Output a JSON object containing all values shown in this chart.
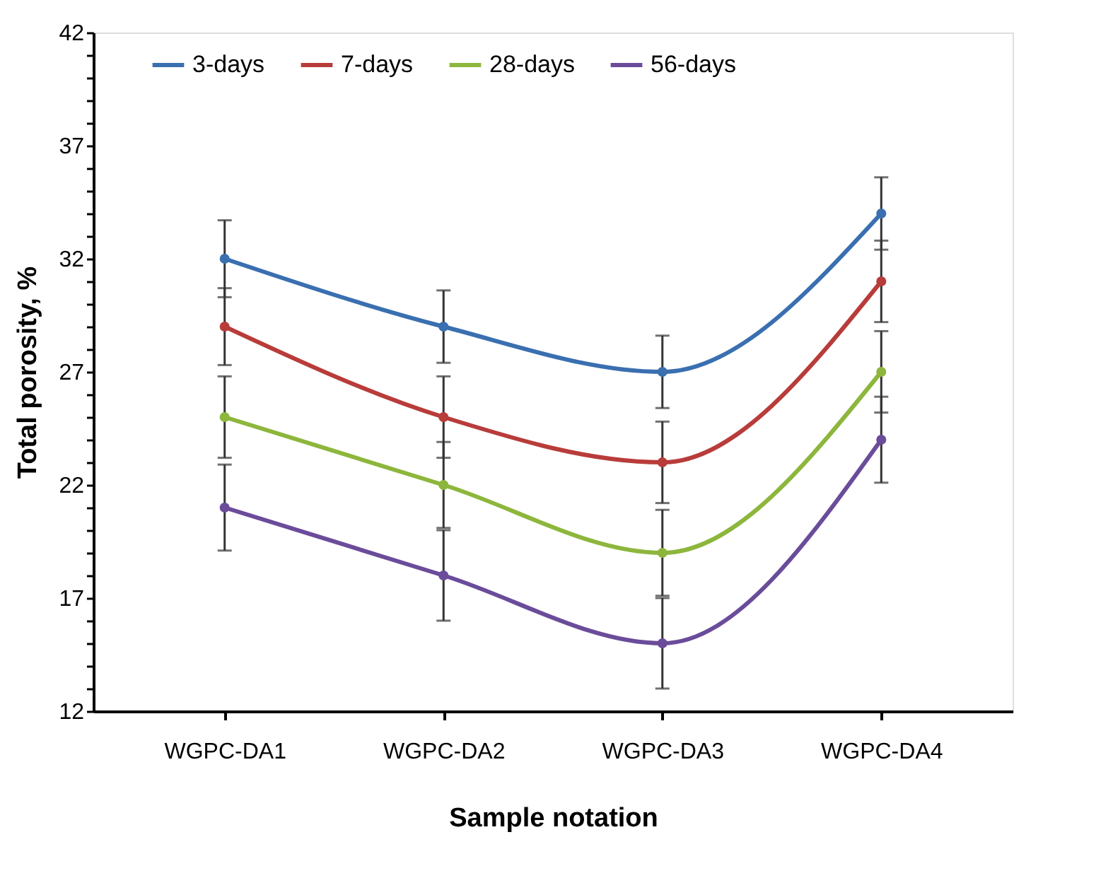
{
  "chart_data": {
    "type": "line",
    "xlabel": "Sample notation",
    "ylabel": "Total porosity, %",
    "categories": [
      "WGPC-DA1",
      "WGPC-DA2",
      "WGPC-DA3",
      "WGPC-DA4"
    ],
    "series": [
      {
        "name": "3-days",
        "color": "#3a6fb0",
        "values": [
          32,
          29,
          27,
          34
        ],
        "errors": [
          1.7,
          1.6,
          1.6,
          1.6
        ]
      },
      {
        "name": "7-days",
        "color": "#b83c3a",
        "values": [
          29,
          25,
          23,
          31
        ],
        "errors": [
          1.7,
          1.8,
          1.8,
          1.8
        ]
      },
      {
        "name": "28-days",
        "color": "#8db63c",
        "values": [
          25,
          22,
          19,
          27
        ],
        "errors": [
          1.8,
          1.9,
          1.9,
          1.8
        ]
      },
      {
        "name": "56-days",
        "color": "#6b4c9a",
        "values": [
          21,
          18,
          15,
          24
        ],
        "errors": [
          1.9,
          2.0,
          2.0,
          1.9
        ]
      }
    ],
    "ylim": [
      12,
      42
    ],
    "yticks": [
      12,
      {
        "value": 13,
        "label": null
      },
      {
        "value": 14,
        "label": null
      },
      {
        "value": 15,
        "label": null
      },
      {
        "value": 16,
        "label": null
      },
      17,
      {
        "value": 18,
        "label": null
      },
      {
        "value": 19,
        "label": null
      },
      {
        "value": 20,
        "label": null
      },
      {
        "value": 21,
        "label": null
      },
      22,
      {
        "value": 23,
        "label": null
      },
      {
        "value": 24,
        "label": null
      },
      {
        "value": 25,
        "label": null
      },
      {
        "value": 26,
        "label": null
      },
      27,
      {
        "value": 28,
        "label": null
      },
      {
        "value": 29,
        "label": null
      },
      {
        "value": 30,
        "label": null
      },
      {
        "value": 31,
        "label": null
      },
      32,
      {
        "value": 33,
        "label": null
      },
      {
        "value": 34,
        "label": null
      },
      {
        "value": 35,
        "label": null
      },
      {
        "value": 36,
        "label": null
      },
      37,
      {
        "value": 38,
        "label": null
      },
      {
        "value": 39,
        "label": null
      },
      {
        "value": 40,
        "label": null
      },
      {
        "value": 41,
        "label": null
      },
      42
    ],
    "grid": false,
    "legend": "top",
    "marker": "circle",
    "line_style": "solid"
  }
}
